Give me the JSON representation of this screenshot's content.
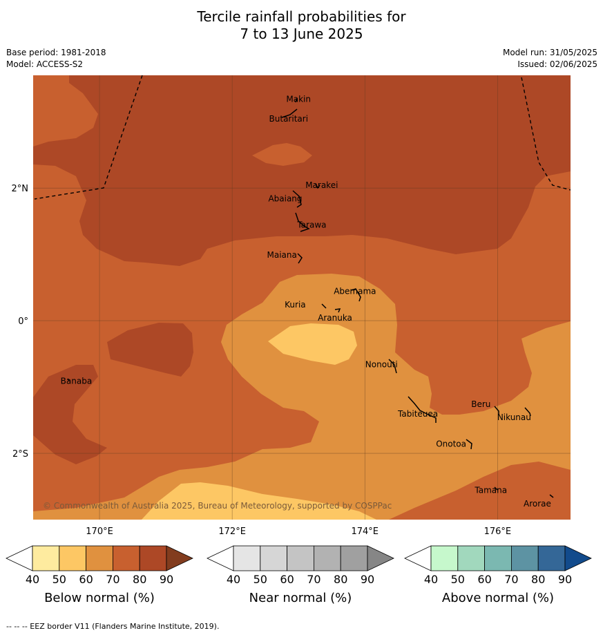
{
  "title_line1": "Tercile rainfall probabilities for",
  "title_line2": "7 to 13 June 2025",
  "base_period": "Base period: 1981-2018",
  "model": "Model: ACCESS-S2",
  "model_run": "Model run: 31/05/2025",
  "issued": "Issued: 02/06/2025",
  "copyright": "© Commonwealth of Australia 2025, Bureau of Meteorology, supported by COSPPac",
  "footer": "--  --  -- EEZ border V11 (Flanders Marine Institute, 2019).",
  "map": {
    "lon_range": [
      169,
      177.1
    ],
    "lat_range": [
      -3,
      3.7
    ],
    "lon_ticks": [
      {
        "v": 170,
        "label": "170°E"
      },
      {
        "v": 172,
        "label": "172°E"
      },
      {
        "v": 174,
        "label": "174°E"
      },
      {
        "v": 176,
        "label": "176°E"
      }
    ],
    "lat_ticks": [
      {
        "v": 2,
        "label": "2°N"
      },
      {
        "v": 0,
        "label": "0°"
      },
      {
        "v": -2,
        "label": "2°S"
      }
    ],
    "places": [
      {
        "name": "Makin",
        "lon": 173.0,
        "lat": 3.3
      },
      {
        "name": "Butaritari",
        "lon": 172.85,
        "lat": 3.0
      },
      {
        "name": "Marakei",
        "lon": 173.35,
        "lat": 2.0
      },
      {
        "name": "Abaiang",
        "lon": 172.8,
        "lat": 1.8
      },
      {
        "name": "Tarawa",
        "lon": 173.2,
        "lat": 1.4
      },
      {
        "name": "Maiana",
        "lon": 172.75,
        "lat": 0.95
      },
      {
        "name": "Abemama",
        "lon": 173.85,
        "lat": 0.4
      },
      {
        "name": "Kuria",
        "lon": 172.95,
        "lat": 0.2
      },
      {
        "name": "Aranuka",
        "lon": 173.55,
        "lat": 0.0
      },
      {
        "name": "Banaba",
        "lon": 169.65,
        "lat": -0.95
      },
      {
        "name": "Nonouti",
        "lon": 174.25,
        "lat": -0.7
      },
      {
        "name": "Beru",
        "lon": 175.75,
        "lat": -1.3
      },
      {
        "name": "Tabiteuea",
        "lon": 174.8,
        "lat": -1.45
      },
      {
        "name": "Nikunau",
        "lon": 176.25,
        "lat": -1.5
      },
      {
        "name": "Onotoa",
        "lon": 175.3,
        "lat": -1.9
      },
      {
        "name": "Tamana",
        "lon": 175.9,
        "lat": -2.6
      },
      {
        "name": "Arorae",
        "lon": 176.6,
        "lat": -2.8
      }
    ]
  },
  "colorbars": [
    {
      "title": "Below normal (%)",
      "ticks": [
        "40",
        "50",
        "60",
        "70",
        "80",
        "90"
      ],
      "colors": [
        "#ffffff",
        "#feeb9f",
        "#fdc764",
        "#e0913f",
        "#c8602f",
        "#ad4826",
        "#823c1e"
      ]
    },
    {
      "title": "Near normal (%)",
      "ticks": [
        "40",
        "50",
        "60",
        "70",
        "80",
        "90"
      ],
      "colors": [
        "#ffffff",
        "#e5e5e5",
        "#d6d6d6",
        "#c4c4c4",
        "#b2b2b2",
        "#a0a0a0",
        "#868686"
      ]
    },
    {
      "title": "Above normal (%)",
      "ticks": [
        "40",
        "50",
        "60",
        "70",
        "80",
        "90"
      ],
      "colors": [
        "#ffffff",
        "#c6f8cc",
        "#a1d8bd",
        "#7bb8b1",
        "#5d93a3",
        "#346797",
        "#124b8c"
      ]
    }
  ],
  "region_colors": {
    "c70": "#c8602f",
    "c80": "#ad4826",
    "c60": "#e0913f",
    "c50": "#fdc764"
  }
}
